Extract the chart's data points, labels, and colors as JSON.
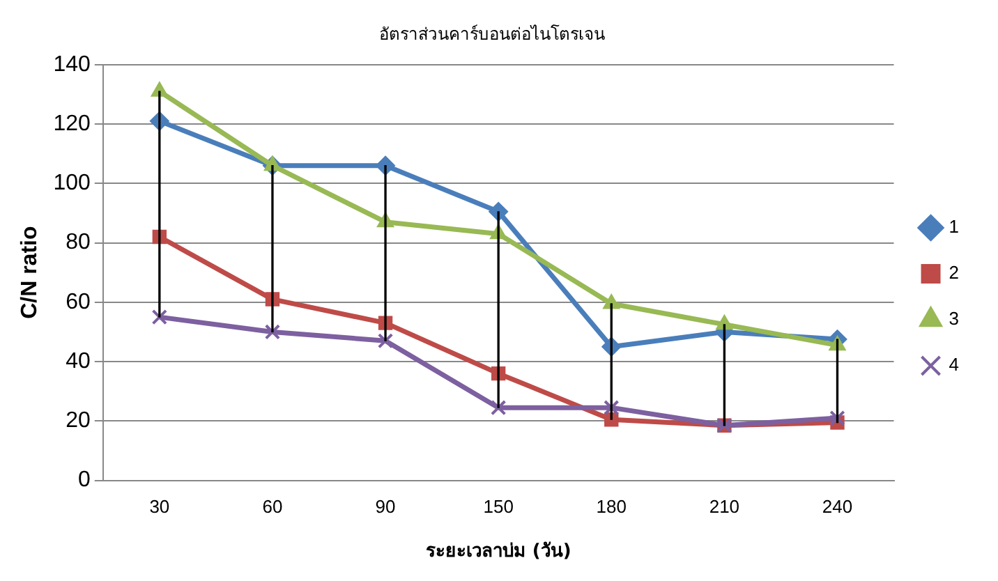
{
  "chart_data": {
    "type": "line",
    "title": "อัตราส่วนคาร์บอนต่อไนโตรเจน",
    "xlabel": "ระยะเวลาบ่ม (วัน)",
    "ylabel": "C/N ratio",
    "categories": [
      "30",
      "60",
      "90",
      "150",
      "180",
      "210",
      "240"
    ],
    "series": [
      {
        "name": "1",
        "color": "#4a7ebb",
        "marker": "diamond",
        "values": [
          121,
          106,
          106,
          90.5,
          45,
          50,
          47.5
        ]
      },
      {
        "name": "2",
        "color": "#be4b48",
        "marker": "square",
        "values": [
          82,
          61,
          53,
          36,
          20.5,
          18.5,
          19.5
        ]
      },
      {
        "name": "3",
        "color": "#98b954",
        "marker": "triangle",
        "values": [
          131,
          106,
          87,
          83,
          59.5,
          52.5,
          45.5
        ]
      },
      {
        "name": "4",
        "color": "#7d60a0",
        "marker": "cross",
        "values": [
          55,
          50,
          47,
          24.5,
          24.5,
          18.5,
          21
        ]
      },
      {
        "type": "bar",
        "color": "#000000",
        "base": [
          55,
          50,
          47,
          24.5,
          20.5,
          18.5,
          19.5
        ],
        "values": [
          76,
          56,
          59,
          66,
          39,
          34,
          28
        ]
      }
    ],
    "ylim": [
      0,
      140
    ],
    "yticks": [
      0,
      20,
      40,
      60,
      80,
      100,
      120,
      140
    ],
    "grid": "y",
    "legend": "right",
    "line_style": "solid"
  }
}
